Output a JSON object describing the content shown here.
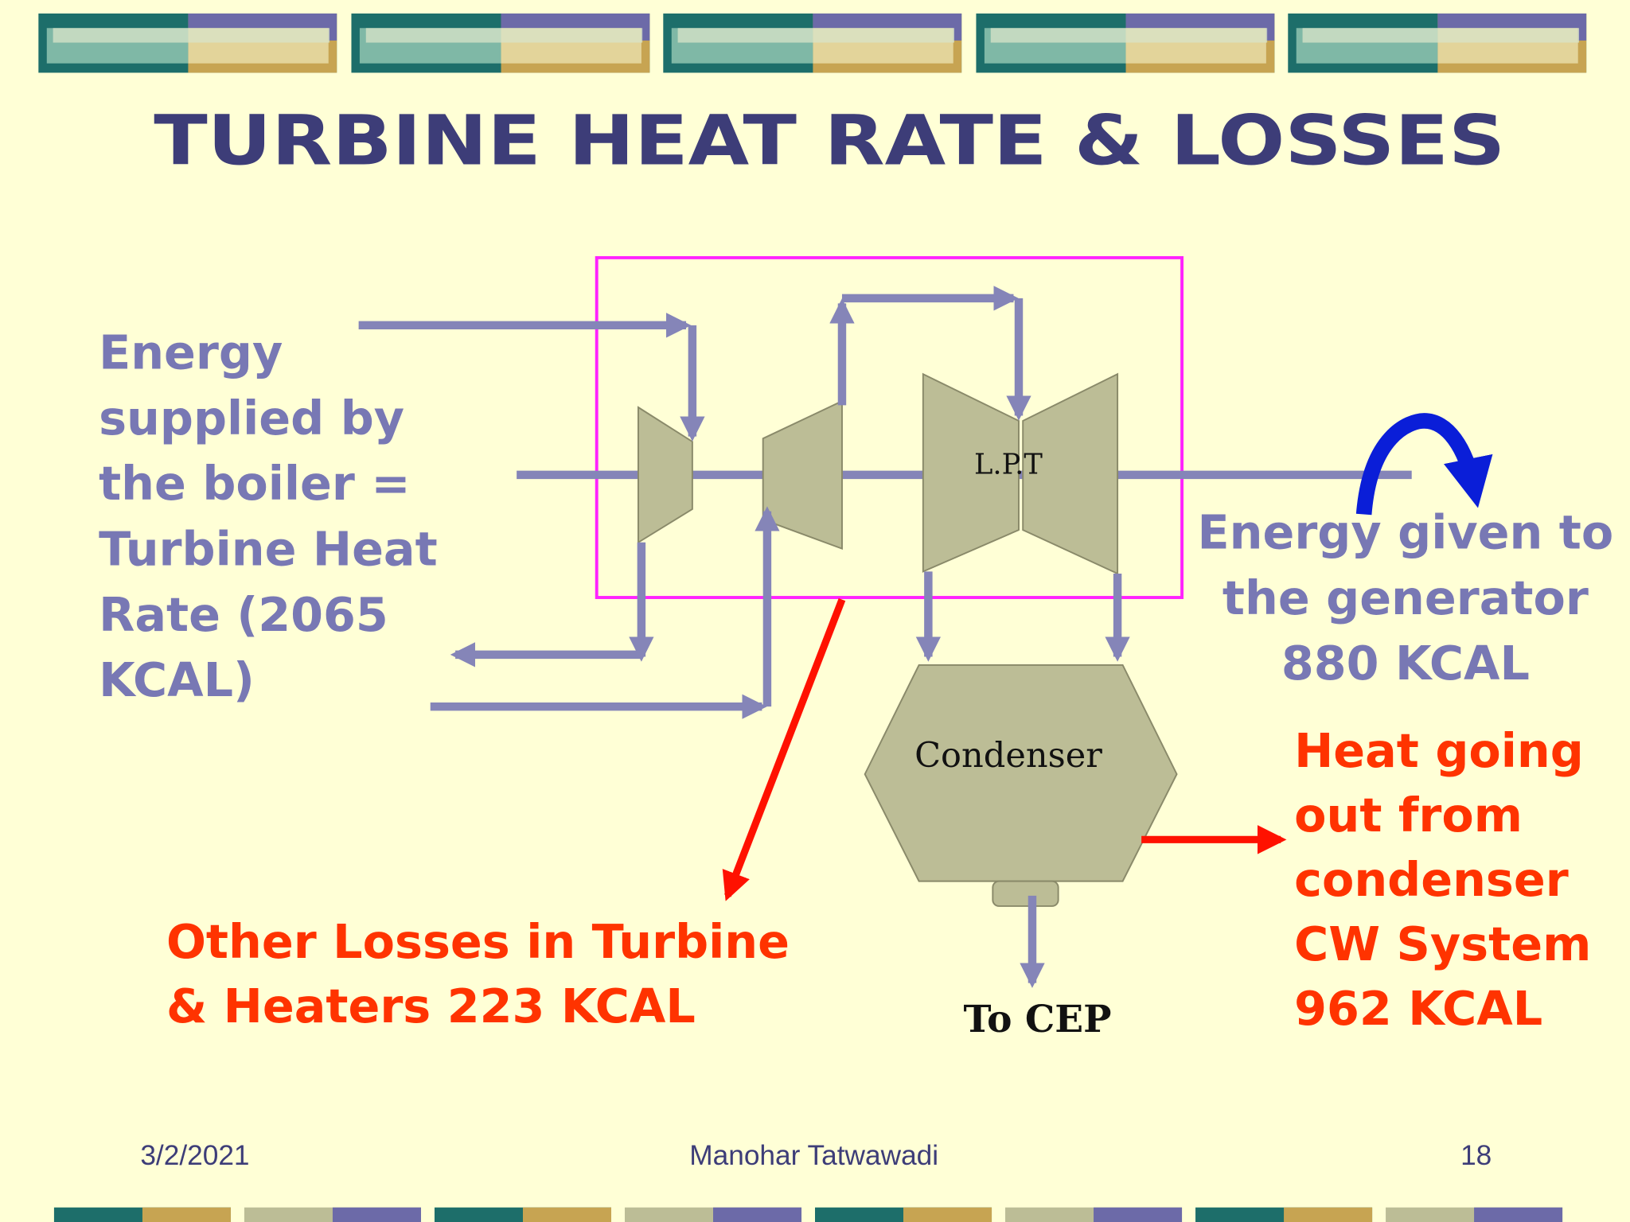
{
  "header": {
    "title": "TURBINE HEAT RATE & LOSSES"
  },
  "diagram": {
    "boiler_energy": [
      "Energy",
      "supplied by",
      "the boiler =",
      "Turbine Heat",
      "Rate (2065",
      "KCAL)"
    ],
    "generator_energy": [
      "Energy given to",
      "the generator",
      "880 KCAL"
    ],
    "condenser_heat": [
      "Heat going",
      "out from",
      "condenser",
      "CW System",
      "962 KCAL"
    ],
    "other_losses": [
      "Other Losses in Turbine",
      "& Heaters 223 KCAL"
    ],
    "turbine_label": "L.P.T",
    "condenser_label": "Condenser",
    "outlet_label": "To CEP"
  },
  "footer": {
    "date": "3/2/2021",
    "author": "Manohar Tatwawadi",
    "page": "18"
  }
}
